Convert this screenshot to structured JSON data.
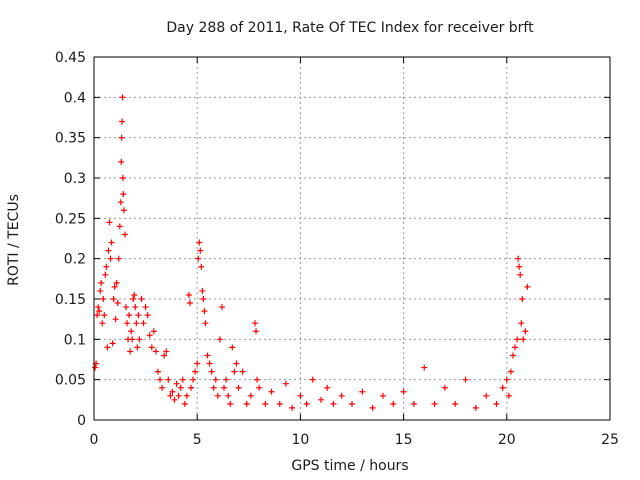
{
  "chart_data": {
    "type": "scatter",
    "title": "Day 288 of 2011, Rate Of TEC Index for receiver brft",
    "xlabel": "GPS time / hours",
    "ylabel": "ROTI / TECUs",
    "xlim": [
      0,
      25
    ],
    "ylim": [
      0,
      0.45
    ],
    "xticks": [
      "0",
      "5",
      "10",
      "15",
      "20",
      "25"
    ],
    "yticks": [
      "0",
      "0.05",
      "0.1",
      "0.15",
      "0.2",
      "0.25",
      "0.3",
      "0.35",
      "0.4",
      "0.45"
    ],
    "grid": true,
    "marker": "+",
    "color": "#ff0000",
    "series": [
      {
        "points": [
          [
            0.05,
            0.065
          ],
          [
            0.1,
            0.07
          ],
          [
            0.15,
            0.13
          ],
          [
            0.2,
            0.14
          ],
          [
            0.25,
            0.135
          ],
          [
            0.3,
            0.16
          ],
          [
            0.35,
            0.17
          ],
          [
            0.4,
            0.12
          ],
          [
            0.45,
            0.15
          ],
          [
            0.5,
            0.13
          ],
          [
            0.55,
            0.18
          ],
          [
            0.6,
            0.19
          ],
          [
            0.65,
            0.09
          ],
          [
            0.7,
            0.21
          ],
          [
            0.75,
            0.245
          ],
          [
            0.8,
            0.2
          ],
          [
            0.85,
            0.22
          ],
          [
            0.9,
            0.095
          ],
          [
            0.95,
            0.15
          ],
          [
            1.0,
            0.165
          ],
          [
            1.05,
            0.125
          ],
          [
            1.1,
            0.17
          ],
          [
            1.15,
            0.145
          ],
          [
            1.2,
            0.2
          ],
          [
            1.25,
            0.24
          ],
          [
            1.3,
            0.27
          ],
          [
            1.32,
            0.32
          ],
          [
            1.34,
            0.35
          ],
          [
            1.36,
            0.37
          ],
          [
            1.38,
            0.4
          ],
          [
            1.4,
            0.3
          ],
          [
            1.42,
            0.28
          ],
          [
            1.45,
            0.26
          ],
          [
            1.5,
            0.23
          ],
          [
            1.55,
            0.14
          ],
          [
            1.6,
            0.12
          ],
          [
            1.65,
            0.1
          ],
          [
            1.7,
            0.13
          ],
          [
            1.75,
            0.085
          ],
          [
            1.8,
            0.11
          ],
          [
            1.85,
            0.1
          ],
          [
            1.9,
            0.15
          ],
          [
            1.95,
            0.155
          ],
          [
            2.0,
            0.14
          ],
          [
            2.05,
            0.12
          ],
          [
            2.1,
            0.09
          ],
          [
            2.15,
            0.13
          ],
          [
            2.2,
            0.1
          ],
          [
            2.3,
            0.15
          ],
          [
            2.4,
            0.12
          ],
          [
            2.5,
            0.14
          ],
          [
            2.6,
            0.13
          ],
          [
            2.7,
            0.105
          ],
          [
            2.8,
            0.09
          ],
          [
            2.9,
            0.11
          ],
          [
            3.0,
            0.085
          ],
          [
            3.1,
            0.06
          ],
          [
            3.2,
            0.05
          ],
          [
            3.3,
            0.04
          ],
          [
            3.4,
            0.08
          ],
          [
            3.5,
            0.085
          ],
          [
            3.6,
            0.05
          ],
          [
            3.7,
            0.03
          ],
          [
            3.8,
            0.035
          ],
          [
            3.9,
            0.025
          ],
          [
            4.0,
            0.045
          ],
          [
            4.1,
            0.03
          ],
          [
            4.2,
            0.04
          ],
          [
            4.3,
            0.05
          ],
          [
            4.4,
            0.02
          ],
          [
            4.5,
            0.03
          ],
          [
            4.6,
            0.155
          ],
          [
            4.65,
            0.145
          ],
          [
            4.7,
            0.04
          ],
          [
            4.8,
            0.05
          ],
          [
            4.9,
            0.06
          ],
          [
            5.0,
            0.07
          ],
          [
            5.05,
            0.2
          ],
          [
            5.1,
            0.22
          ],
          [
            5.15,
            0.21
          ],
          [
            5.2,
            0.19
          ],
          [
            5.25,
            0.16
          ],
          [
            5.3,
            0.15
          ],
          [
            5.35,
            0.135
          ],
          [
            5.4,
            0.12
          ],
          [
            5.5,
            0.08
          ],
          [
            5.6,
            0.07
          ],
          [
            5.7,
            0.06
          ],
          [
            5.8,
            0.04
          ],
          [
            5.9,
            0.05
          ],
          [
            6.0,
            0.03
          ],
          [
            6.1,
            0.1
          ],
          [
            6.2,
            0.14
          ],
          [
            6.3,
            0.04
          ],
          [
            6.4,
            0.05
          ],
          [
            6.5,
            0.03
          ],
          [
            6.6,
            0.02
          ],
          [
            6.7,
            0.09
          ],
          [
            6.8,
            0.06
          ],
          [
            6.9,
            0.07
          ],
          [
            7.0,
            0.04
          ],
          [
            7.2,
            0.06
          ],
          [
            7.4,
            0.02
          ],
          [
            7.6,
            0.03
          ],
          [
            7.8,
            0.12
          ],
          [
            7.85,
            0.11
          ],
          [
            7.9,
            0.05
          ],
          [
            8.0,
            0.04
          ],
          [
            8.3,
            0.02
          ],
          [
            8.6,
            0.035
          ],
          [
            9.0,
            0.02
          ],
          [
            9.3,
            0.045
          ],
          [
            9.6,
            0.015
          ],
          [
            10.0,
            0.03
          ],
          [
            10.3,
            0.02
          ],
          [
            10.6,
            0.05
          ],
          [
            11.0,
            0.025
          ],
          [
            11.3,
            0.04
          ],
          [
            11.6,
            0.02
          ],
          [
            12.0,
            0.03
          ],
          [
            12.5,
            0.02
          ],
          [
            13.0,
            0.035
          ],
          [
            13.5,
            0.015
          ],
          [
            14.0,
            0.03
          ],
          [
            14.5,
            0.02
          ],
          [
            15.0,
            0.035
          ],
          [
            15.5,
            0.02
          ],
          [
            16.0,
            0.065
          ],
          [
            16.5,
            0.02
          ],
          [
            17.0,
            0.04
          ],
          [
            17.5,
            0.02
          ],
          [
            18.0,
            0.05
          ],
          [
            18.5,
            0.015
          ],
          [
            19.0,
            0.03
          ],
          [
            19.5,
            0.02
          ],
          [
            19.8,
            0.04
          ],
          [
            20.0,
            0.05
          ],
          [
            20.1,
            0.03
          ],
          [
            20.2,
            0.06
          ],
          [
            20.3,
            0.08
          ],
          [
            20.4,
            0.09
          ],
          [
            20.5,
            0.1
          ],
          [
            20.55,
            0.2
          ],
          [
            20.6,
            0.19
          ],
          [
            20.65,
            0.18
          ],
          [
            20.7,
            0.12
          ],
          [
            20.75,
            0.15
          ],
          [
            20.8,
            0.1
          ],
          [
            20.9,
            0.11
          ],
          [
            21.0,
            0.165
          ]
        ]
      }
    ]
  }
}
